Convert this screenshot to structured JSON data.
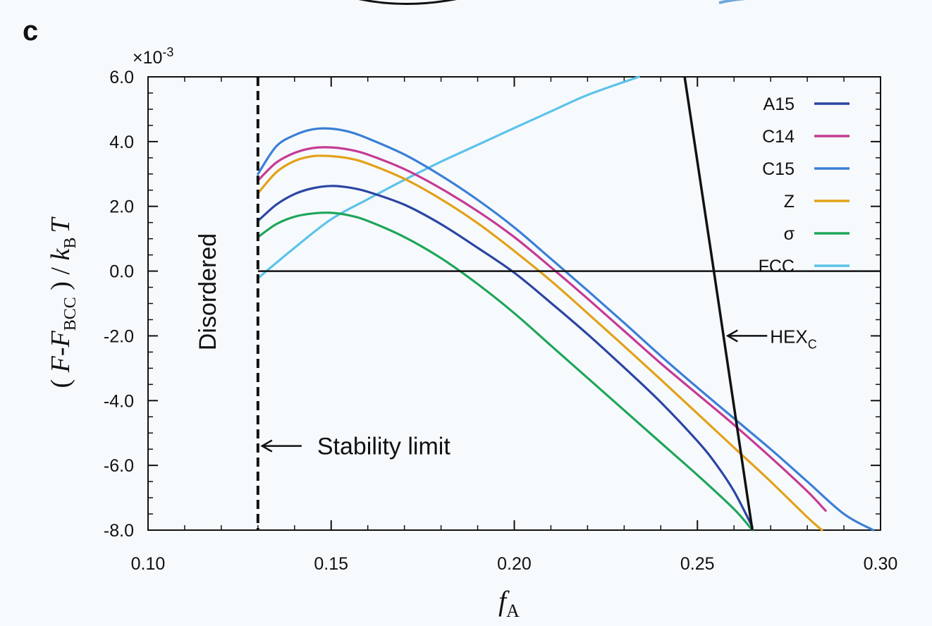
{
  "panel_label": "c",
  "colors": {
    "A15": "#2b45a3",
    "C14": "#c63a94",
    "C15": "#3a7fd6",
    "Z": "#e3a118",
    "sigma": "#1fa65a",
    "FCC": "#5cc3ea",
    "HEX_C": "#111111",
    "background": "#f7fafd"
  },
  "chart_data": {
    "type": "line",
    "title": "",
    "xlabel": "f_A",
    "xlabel_main": "f",
    "xlabel_sub": "A",
    "ylabel": "(F-F_BCC)/k_B T",
    "ylabel_parts": {
      "open": "( ",
      "F1": "F",
      "dash": "-",
      "F2": "F",
      "sub1": "BCC",
      "close": " ) / ",
      "k": "k",
      "sub2": "B",
      "T": "T"
    },
    "y_scale_label": {
      "prefix": "×10",
      "exp": "-3"
    },
    "xlim": [
      0.1,
      0.3
    ],
    "ylim": [
      -8.0,
      6.0
    ],
    "x_ticks": [
      {
        "value": 0.1,
        "label": "0.10"
      },
      {
        "value": 0.15,
        "label": "0.15"
      },
      {
        "value": 0.2,
        "label": "0.20"
      },
      {
        "value": 0.25,
        "label": "0.25"
      },
      {
        "value": 0.3,
        "label": "0.30"
      }
    ],
    "y_ticks": [
      {
        "value": 6.0,
        "label": "6.0"
      },
      {
        "value": 4.0,
        "label": "4.0"
      },
      {
        "value": 2.0,
        "label": "2.0"
      },
      {
        "value": 0.0,
        "label": "0.0"
      },
      {
        "value": -2.0,
        "label": "-2.0"
      },
      {
        "value": -4.0,
        "label": "-4.0"
      },
      {
        "value": -6.0,
        "label": "-6.0"
      },
      {
        "value": -8.0,
        "label": "-8.0"
      }
    ],
    "x_minor_step": 0.01,
    "y_minor_step": 0.5,
    "series": [
      {
        "name": "A15",
        "key": "A15",
        "x": [
          0.13,
          0.135,
          0.14,
          0.145,
          0.15,
          0.155,
          0.16,
          0.17,
          0.18,
          0.19,
          0.2,
          0.21,
          0.22,
          0.23,
          0.24,
          0.25,
          0.255,
          0.26,
          0.265
        ],
        "y": [
          1.55,
          2.05,
          2.38,
          2.56,
          2.63,
          2.58,
          2.45,
          2.05,
          1.45,
          0.72,
          -0.05,
          -0.98,
          -1.95,
          -2.98,
          -4.05,
          -5.25,
          -5.95,
          -6.8,
          -7.9
        ]
      },
      {
        "name": "C14",
        "key": "C14",
        "x": [
          0.13,
          0.135,
          0.14,
          0.145,
          0.15,
          0.155,
          0.16,
          0.17,
          0.18,
          0.19,
          0.2,
          0.21,
          0.22,
          0.23,
          0.24,
          0.25,
          0.26,
          0.27,
          0.28,
          0.285
        ],
        "y": [
          2.8,
          3.35,
          3.65,
          3.8,
          3.82,
          3.75,
          3.6,
          3.15,
          2.55,
          1.85,
          1.05,
          0.12,
          -0.85,
          -1.85,
          -2.85,
          -3.8,
          -4.75,
          -5.75,
          -6.8,
          -7.4
        ]
      },
      {
        "name": "C15",
        "key": "C15",
        "x": [
          0.13,
          0.135,
          0.14,
          0.145,
          0.15,
          0.155,
          0.16,
          0.17,
          0.18,
          0.19,
          0.2,
          0.21,
          0.22,
          0.23,
          0.24,
          0.25,
          0.26,
          0.27,
          0.28,
          0.29,
          0.298
        ],
        "y": [
          3.0,
          3.85,
          4.2,
          4.38,
          4.4,
          4.3,
          4.1,
          3.6,
          2.95,
          2.2,
          1.35,
          0.38,
          -0.6,
          -1.6,
          -2.62,
          -3.6,
          -4.55,
          -5.5,
          -6.5,
          -7.5,
          -8.0
        ]
      },
      {
        "name": "Z",
        "key": "Z",
        "x": [
          0.13,
          0.135,
          0.14,
          0.145,
          0.15,
          0.155,
          0.16,
          0.17,
          0.18,
          0.19,
          0.2,
          0.21,
          0.22,
          0.23,
          0.24,
          0.25,
          0.26,
          0.27,
          0.28,
          0.284
        ],
        "y": [
          2.4,
          3.05,
          3.4,
          3.55,
          3.55,
          3.48,
          3.32,
          2.85,
          2.22,
          1.48,
          0.62,
          -0.3,
          -1.3,
          -2.32,
          -3.35,
          -4.4,
          -5.45,
          -6.5,
          -7.6,
          -8.0
        ]
      },
      {
        "name": "σ",
        "key": "sigma",
        "x": [
          0.13,
          0.135,
          0.14,
          0.145,
          0.15,
          0.155,
          0.16,
          0.17,
          0.18,
          0.19,
          0.2,
          0.21,
          0.22,
          0.23,
          0.24,
          0.25,
          0.26,
          0.265
        ],
        "y": [
          1.05,
          1.45,
          1.68,
          1.78,
          1.8,
          1.72,
          1.55,
          1.05,
          0.4,
          -0.4,
          -1.3,
          -2.3,
          -3.3,
          -4.3,
          -5.3,
          -6.3,
          -7.35,
          -8.0
        ]
      },
      {
        "name": "FCC",
        "key": "FCC",
        "x": [
          0.13,
          0.14,
          0.15,
          0.16,
          0.17,
          0.18,
          0.19,
          0.2,
          0.21,
          0.22,
          0.234
        ],
        "y": [
          -0.22,
          0.72,
          1.6,
          2.22,
          2.82,
          3.38,
          3.9,
          4.42,
          4.93,
          5.44,
          6.0
        ]
      }
    ],
    "hex_c": {
      "name": "HEX",
      "sub": "C",
      "x": [
        0.2465,
        0.2545,
        0.265
      ],
      "y": [
        6.0,
        0.0,
        -8.0
      ]
    },
    "zero_line": {
      "y": 0.0,
      "x_start": 0.13,
      "x_end": 0.3
    },
    "stability_limit": {
      "x": 0.13,
      "label": "Stability limit",
      "label_y": -5.4
    },
    "disordered_label": "Disordered",
    "hex_arrow_y": -2.0
  }
}
